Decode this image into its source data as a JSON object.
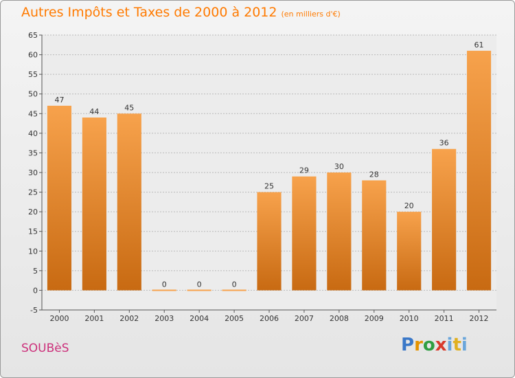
{
  "header": {
    "title": "Autres Impôts et Taxes de 2000 à 2012",
    "subtitle": "(en milliers d'€)"
  },
  "footer": {
    "commune": "SOUBèS",
    "logo_letters": [
      "P",
      "r",
      "o",
      "x",
      "i",
      "t",
      "i"
    ]
  },
  "colors": {
    "title": "#ff7a00",
    "commune": "#cc2f7a",
    "bar_top": "#f7a24c",
    "bar_bottom": "#c86a12",
    "grid": "#b9b9b9"
  },
  "chart_data": {
    "type": "bar",
    "categories": [
      "2000",
      "2001",
      "2002",
      "2003",
      "2004",
      "2005",
      "2006",
      "2007",
      "2008",
      "2009",
      "2010",
      "2011",
      "2012"
    ],
    "values": [
      47,
      44,
      45,
      0,
      0,
      0,
      25,
      29,
      30,
      28,
      20,
      36,
      61
    ],
    "value_labels": [
      "47",
      "44",
      "45",
      "0",
      "0",
      "0",
      "25",
      "29",
      "30",
      "28",
      "20",
      "36",
      "61"
    ],
    "ylim": [
      -5,
      65
    ],
    "yticks": [
      -5,
      0,
      5,
      10,
      15,
      20,
      25,
      30,
      35,
      40,
      45,
      50,
      55,
      60,
      65
    ],
    "ytick_labels": [
      "-5",
      "0",
      "5",
      "10",
      "15",
      "20",
      "25",
      "30",
      "35",
      "40",
      "45",
      "50",
      "55",
      "60",
      "65"
    ],
    "grid": "horizontal dashed",
    "legend": "none"
  }
}
